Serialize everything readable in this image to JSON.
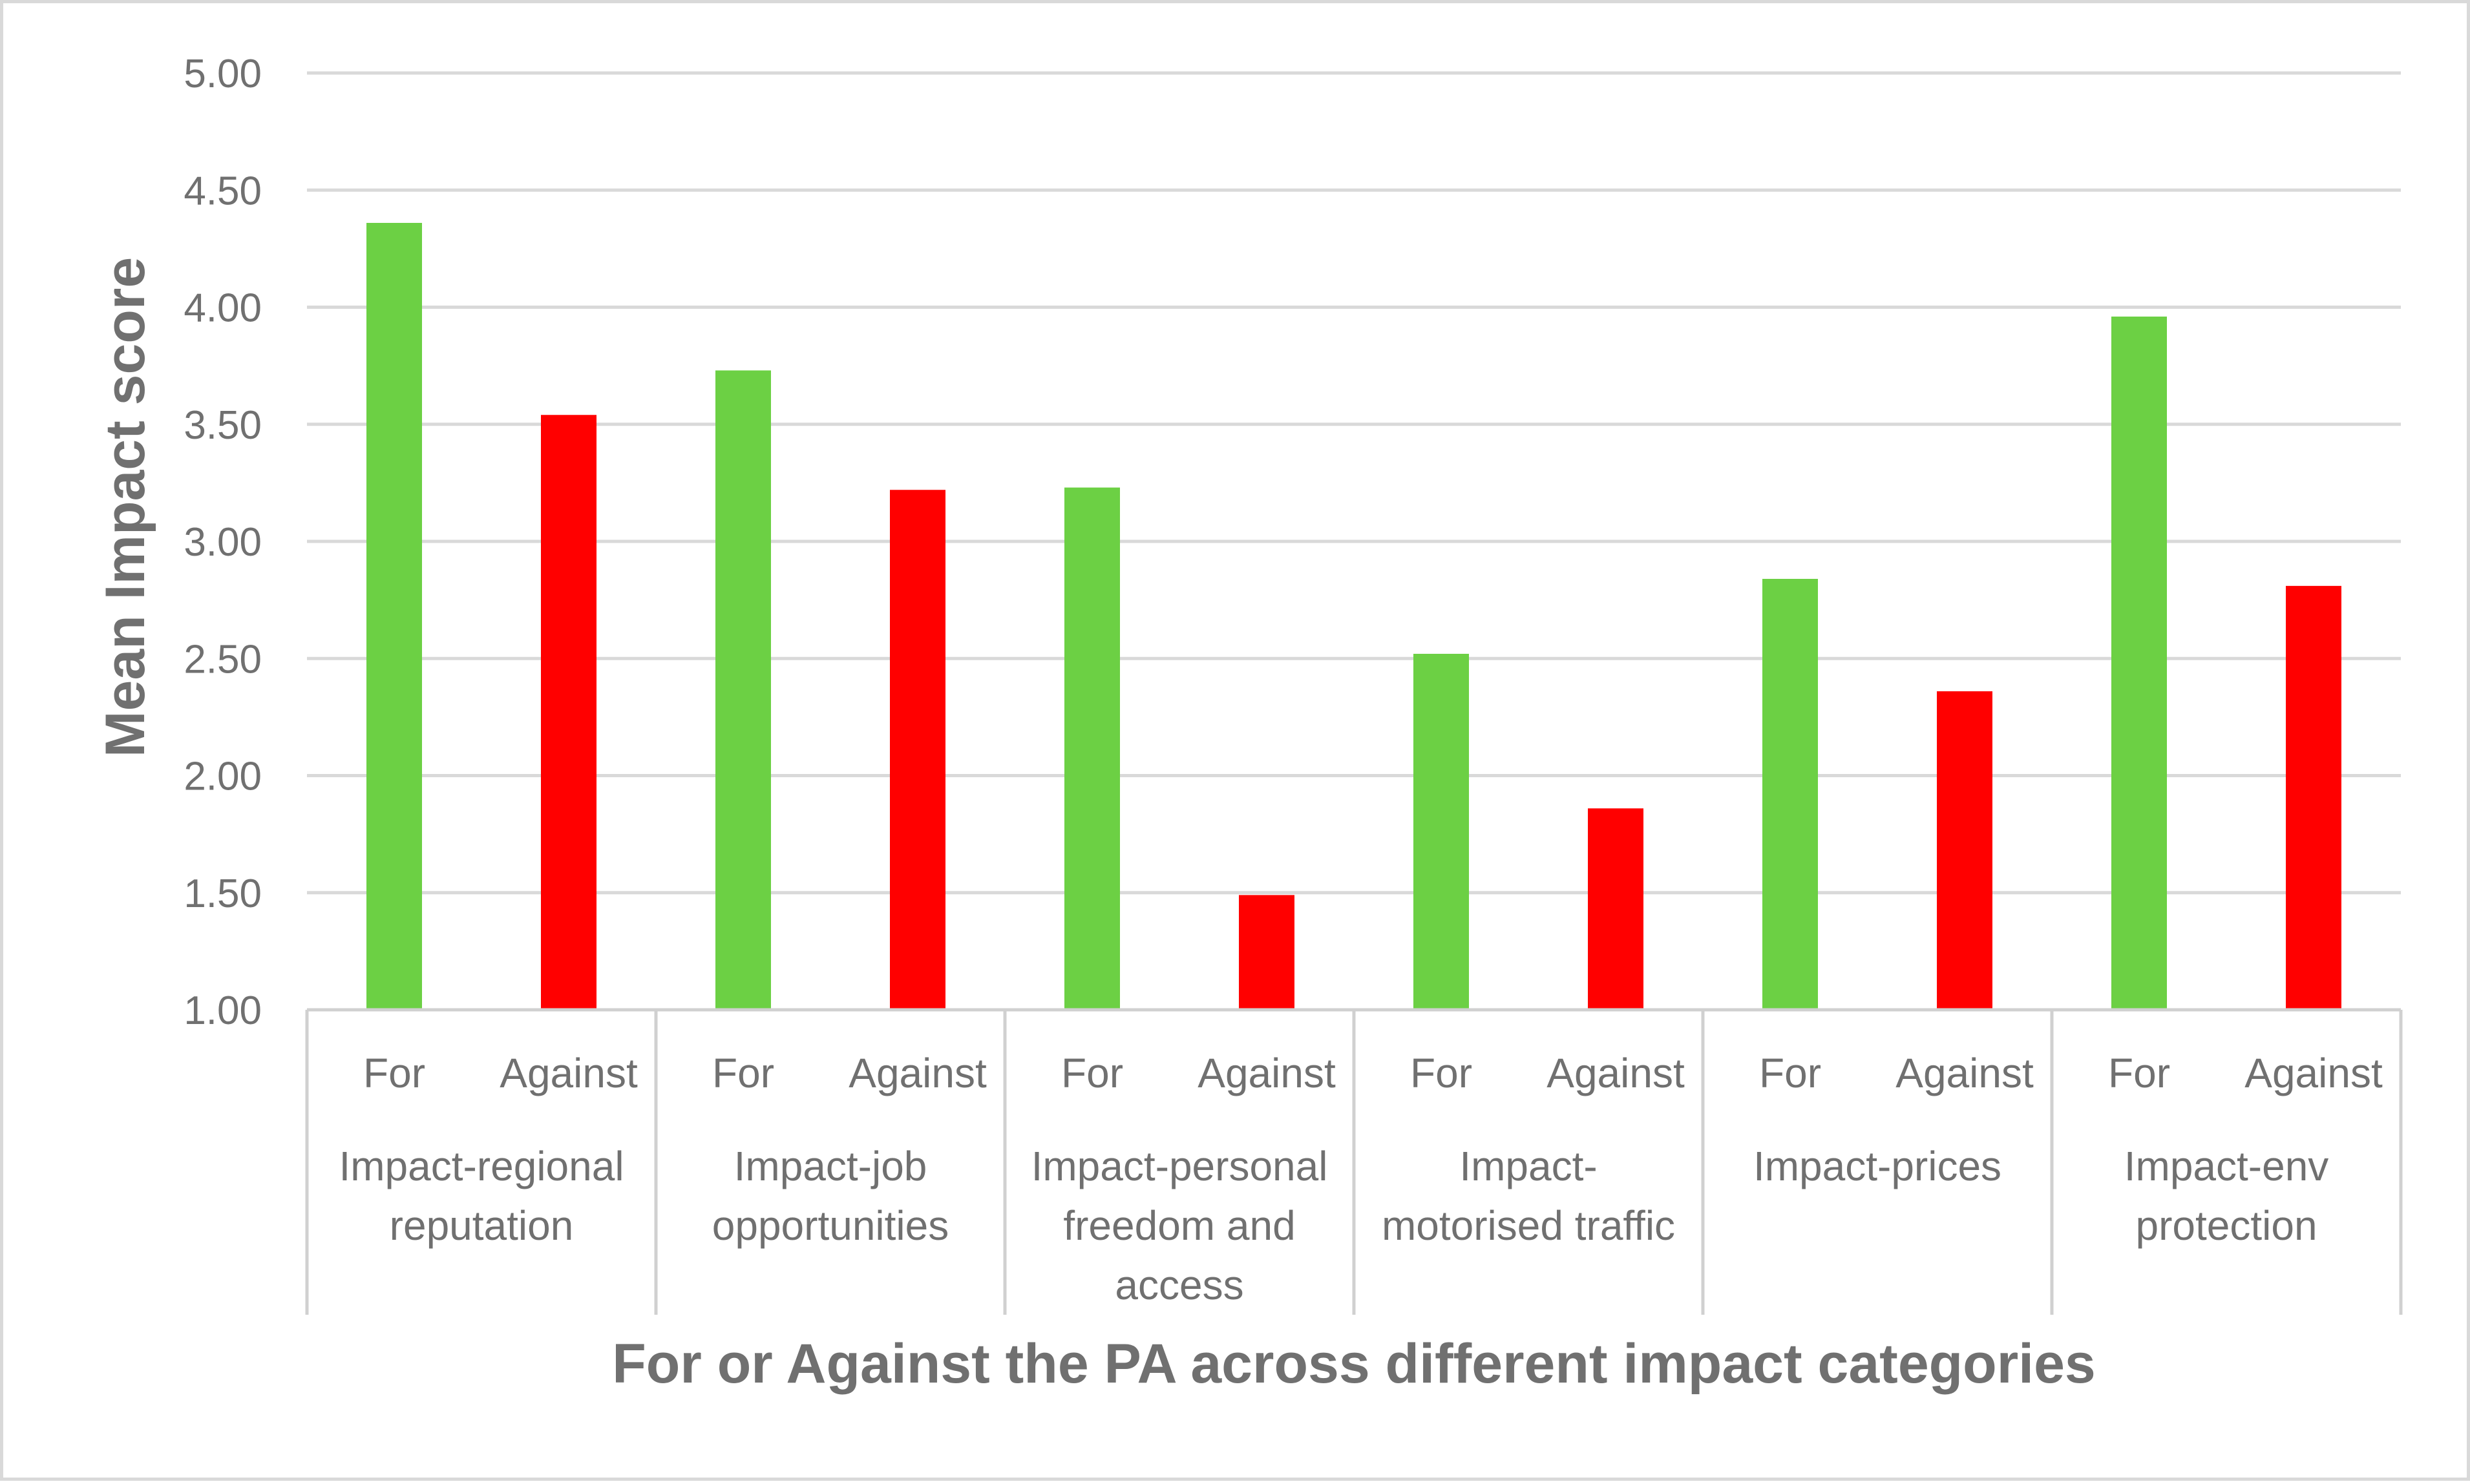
{
  "chart_data": {
    "type": "bar",
    "title": "",
    "xlabel": "For or Against the PA across different impact categories",
    "ylabel": "Mean Impact score",
    "ylim": [
      1.0,
      5.0
    ],
    "yticks": [
      "1.00",
      "1.50",
      "2.00",
      "2.50",
      "3.00",
      "3.50",
      "4.00",
      "4.50",
      "5.00"
    ],
    "grid": true,
    "groups": [
      {
        "label_lines": [
          "Impact-regional",
          "reputation"
        ]
      },
      {
        "label_lines": [
          "Impact-job",
          "opportunities"
        ]
      },
      {
        "label_lines": [
          "Impact-personal",
          "freedom and",
          "access"
        ]
      },
      {
        "label_lines": [
          "Impact-",
          "motorised traffic"
        ]
      },
      {
        "label_lines": [
          "Impact-prices"
        ]
      },
      {
        "label_lines": [
          "Impact-env",
          "protection"
        ]
      }
    ],
    "subcategories": [
      "For",
      "Against"
    ],
    "series": [
      {
        "name": "For",
        "color": "#6cd044",
        "values": [
          4.36,
          3.73,
          3.23,
          2.52,
          2.84,
          3.96
        ]
      },
      {
        "name": "Against",
        "color": "#ff0000",
        "values": [
          3.54,
          3.22,
          1.49,
          1.86,
          2.36,
          2.81
        ]
      }
    ]
  }
}
